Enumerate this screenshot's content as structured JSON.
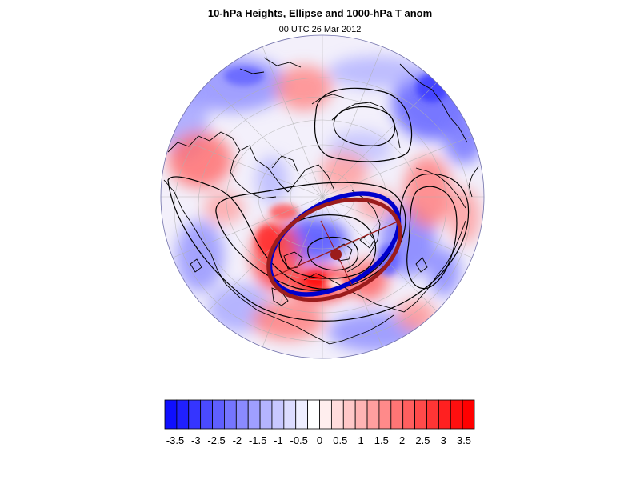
{
  "title": "10-hPa Heights, Ellipse and 1000-hPa T anom",
  "subtitle": "00 UTC 26 Mar 2012",
  "colorbar": {
    "labels": [
      "-3.5",
      "-3",
      "-2.5",
      "-2",
      "-1.5",
      "-1",
      "-0.5",
      "0",
      "0.5",
      "1",
      "1.5",
      "2",
      "2.5",
      "3",
      "3.5"
    ],
    "colors": [
      "#0f0fff",
      "#2020ff",
      "#3535ff",
      "#4a4aff",
      "#5f5fff",
      "#7575ff",
      "#8a8aff",
      "#9f9fff",
      "#b4b4ff",
      "#c8c8ff",
      "#dcdcff",
      "#eeeeff",
      "#ffffff",
      "#ffeeee",
      "#ffdcdc",
      "#ffc8c8",
      "#ffb4b4",
      "#ff9f9f",
      "#ff8a8a",
      "#ff7575",
      "#ff5f5f",
      "#ff4a4a",
      "#ff3535",
      "#ff2020",
      "#ff0f0f",
      "#ff0000"
    ]
  },
  "map": {
    "projection": "orthographic-north-polar",
    "ellipse_colors": {
      "fitted": "#0000cc",
      "reference": "#9b1c1c"
    },
    "contour_color": "#000000",
    "coastline_color": "#000000",
    "gridline_color": "#b0b0b0"
  }
}
